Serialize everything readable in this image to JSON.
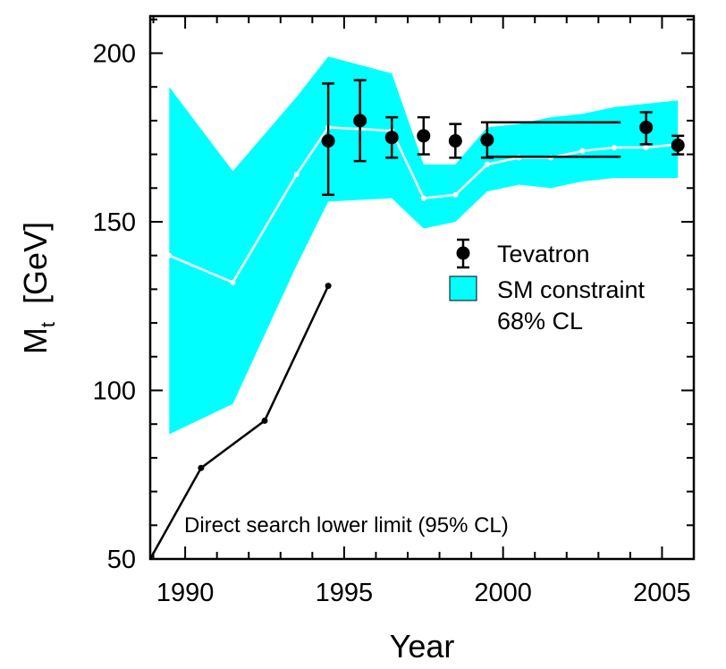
{
  "chart_data": {
    "type": "line",
    "title": "",
    "xlabel": "Year",
    "ylabel_main": "M",
    "ylabel_sub": "t",
    "ylabel_units": "[GeV]",
    "xlim": [
      1988.9,
      2006.0
    ],
    "ylim": [
      50,
      211
    ],
    "xticks": [
      {
        "value": 1990,
        "label": "1990"
      },
      {
        "value": 1995,
        "label": "1995"
      },
      {
        "value": 2000,
        "label": "2000"
      },
      {
        "value": 2005,
        "label": "2005"
      }
    ],
    "yticks": [
      {
        "value": 50,
        "label": "50"
      },
      {
        "value": 100,
        "label": "100"
      },
      {
        "value": 150,
        "label": "150"
      },
      {
        "value": 200,
        "label": "200"
      }
    ],
    "colors": {
      "band": "#00ffff",
      "sm_line": "#ffffff",
      "tevatron": "#000000",
      "direct": "#000000"
    },
    "sm_band": {
      "name": "SM constraint",
      "x": [
        1989.5,
        1991.5,
        1993.5,
        1994.5,
        1996.5,
        1997.5,
        1998.5,
        1999.5,
        2000.5,
        2001.5,
        2002.5,
        2003.5,
        2004.5,
        2005.5
      ],
      "upper": [
        190,
        165,
        187,
        199,
        194,
        167,
        167,
        178,
        179,
        181,
        182,
        184,
        185,
        186
      ],
      "lower": [
        87,
        96,
        137,
        156,
        157,
        148,
        150,
        159,
        161,
        160,
        162,
        163,
        163,
        163
      ]
    },
    "sm_central": {
      "x": [
        1989.5,
        1991.5,
        1993.5,
        1994.5,
        1996.5,
        1997.5,
        1998.5,
        1999.5,
        2000.5,
        2001.5,
        2002.5,
        2003.5,
        2004.5,
        2005.5
      ],
      "y": [
        140,
        132,
        164,
        178,
        177,
        157,
        158,
        167,
        169,
        169,
        171,
        172,
        172,
        173
      ]
    },
    "tevatron": {
      "name": "Tevatron",
      "points": [
        {
          "x": 1994.5,
          "y": 174,
          "lo": 158,
          "hi": 191
        },
        {
          "x": 1995.5,
          "y": 180,
          "lo": 168,
          "hi": 192
        },
        {
          "x": 1996.5,
          "y": 175,
          "lo": 169,
          "hi": 181
        },
        {
          "x": 1997.5,
          "y": 175.5,
          "lo": 170,
          "hi": 181
        },
        {
          "x": 1998.5,
          "y": 174,
          "lo": 169,
          "hi": 179
        },
        {
          "x": 1999.5,
          "y": 174.3,
          "lo": 169,
          "hi": 179.5
        },
        {
          "x": 2004.5,
          "y": 178,
          "lo": 173,
          "hi": 182.5
        },
        {
          "x": 2005.5,
          "y": 172.7,
          "lo": 170,
          "hi": 175.5
        }
      ]
    },
    "run1_band": {
      "x_start": 1999.5,
      "x_end": 2003.7,
      "upper": 179.5,
      "lower": 169.3
    },
    "direct_search": {
      "name": "Direct search lower limit (95% CL)",
      "x": [
        1988.9,
        1990.5,
        1992.5,
        1994.5
      ],
      "y": [
        50,
        77,
        91,
        131
      ]
    },
    "legend": {
      "tevatron_label": "Tevatron",
      "band_label": "SM constraint",
      "band_label_2": "68% CL"
    }
  }
}
